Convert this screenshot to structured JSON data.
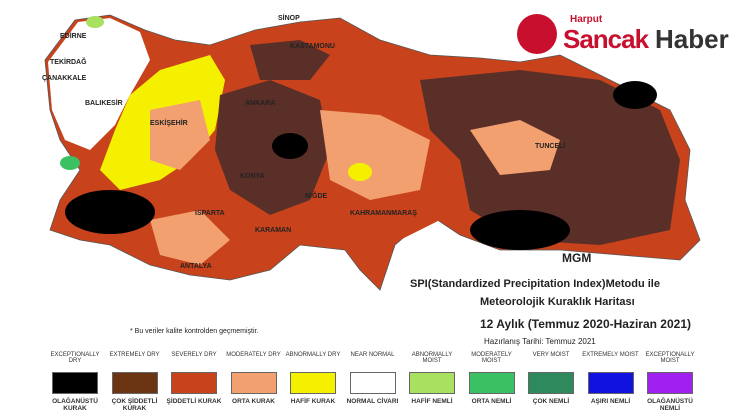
{
  "logo": {
    "top": "Harput",
    "left": "Sancak",
    "right": "Haber"
  },
  "map": {
    "credit": "MGM",
    "places": [
      "SİNOP",
      "EDİRNE",
      "TEKİRDAĞ",
      "ÇANAKKALE",
      "BALIKESİR",
      "KASTAMONU",
      "ANKARA",
      "ESKİŞEHİR",
      "KONYA",
      "NİĞDE",
      "ISPARTA",
      "ANTALYA",
      "KAHRAMANMARAŞ",
      "TUNCELİ",
      "KARAMAN"
    ]
  },
  "title": {
    "lines": [
      "SPI(Standardized Precipitation Index)Metodu ile",
      "Meteorolojik Kuraklık Haritası",
      "12 Aylık (Temmuz 2020-Haziran 2021)"
    ],
    "date": "Hazırlanış Tarihi: Temmuz 2021"
  },
  "note": "* Bu veriler kalite kontrolden geçmemiştir.",
  "legend": [
    {
      "en": "EXCEPTIONALLY DRY",
      "tr": "OLAĞANÜSTÜ KURAK",
      "color": "#000000"
    },
    {
      "en": "EXTREMELY DRY",
      "tr": "ÇOK ŞİDDETLİ KURAK",
      "color": "#6b3412"
    },
    {
      "en": "SEVERELY DRY",
      "tr": "ŞİDDETLİ KURAK",
      "color": "#c8431c"
    },
    {
      "en": "MODERATELY DRY",
      "tr": "ORTA KURAK",
      "color": "#f2a070"
    },
    {
      "en": "ABNORMALLY DRY",
      "tr": "HAFİF KURAK",
      "color": "#f4f000"
    },
    {
      "en": "NEAR NORMAL",
      "tr": "NORMAL CİVARI",
      "color": "#ffffff"
    },
    {
      "en": "ABNORMALLY MOIST",
      "tr": "HAFİF NEMLİ",
      "color": "#a8e060"
    },
    {
      "en": "MODERATELY MOIST",
      "tr": "ORTA NEMLİ",
      "color": "#3cc064"
    },
    {
      "en": "VERY MOIST",
      "tr": "ÇOK NEMLİ",
      "color": "#2e8a5c"
    },
    {
      "en": "EXTREMELY MOIST",
      "tr": "AŞIRI NEMLİ",
      "color": "#1212e0"
    },
    {
      "en": "EXCEPTIONALLY MOIST",
      "tr": "OLAĞANÜSTÜ NEMLİ",
      "color": "#a020f0"
    }
  ]
}
